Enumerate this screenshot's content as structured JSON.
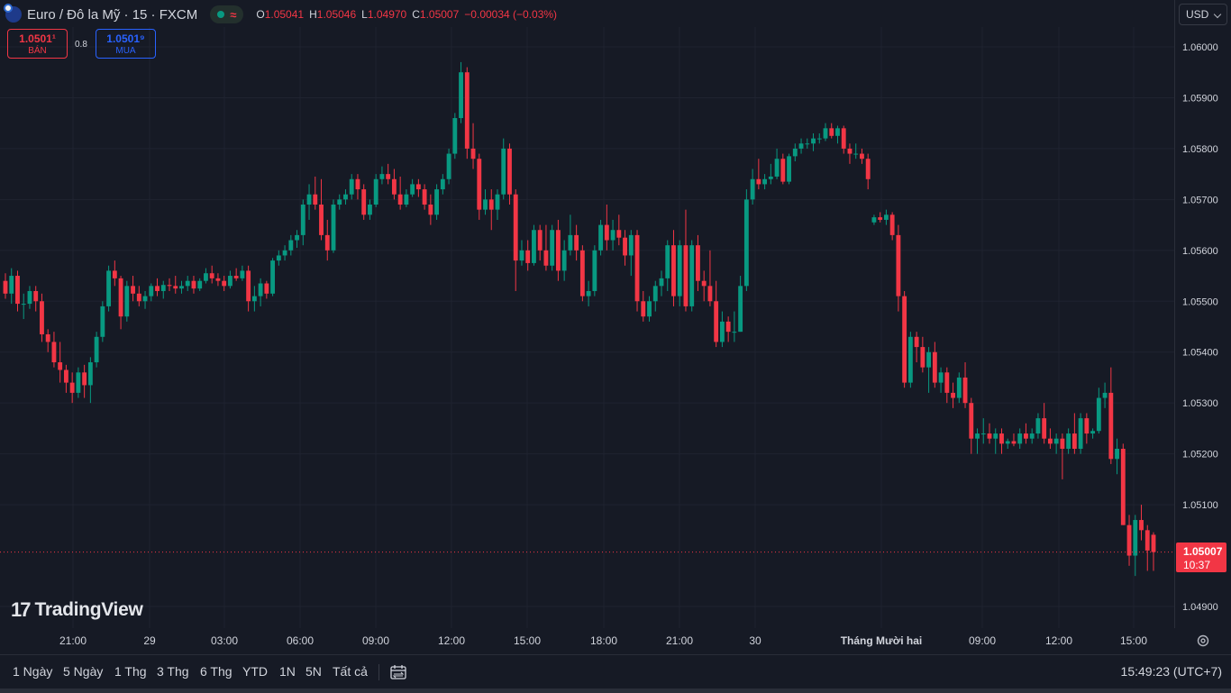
{
  "header": {
    "symbol": "Euro / Đô la Mỹ · 15 · FXCM",
    "signal": "≈",
    "ohlc": [
      {
        "k": "O",
        "v": "1.05041"
      },
      {
        "k": "H",
        "v": "1.05046"
      },
      {
        "k": "L",
        "v": "1.04970"
      },
      {
        "k": "C",
        "v": "1.05007"
      }
    ],
    "change": "−0.00034 (−0.03%)"
  },
  "trade": {
    "sell_price": "1.0501¹",
    "sell_label": "BÁN",
    "spread": "0.8",
    "buy_price": "1.0501⁹",
    "buy_label": "MUA"
  },
  "currency": "USD",
  "last_price": {
    "price": "1.05007",
    "countdown": "10:37"
  },
  "logo_text": "TradingView",
  "ranges": [
    "1 Ngày",
    "5 Ngày",
    "1 Thg",
    "3 Thg",
    "6 Thg",
    "YTD",
    "1N",
    "5N",
    "Tất cả"
  ],
  "clock": "15:49:23 (UTC+7)",
  "colors": {
    "up": "#089981",
    "down": "#f23645",
    "background": "#161a25",
    "grid": "#1f2330"
  },
  "icons": [
    "eur-usd-flag-icon",
    "market-status-icon",
    "date-range-icon",
    "settings-icon"
  ],
  "chart_data": {
    "type": "candlestick",
    "interval": "15",
    "ylim": [
      1.0486,
      1.0607
    ],
    "y_ticks": [
      "1.06000",
      "1.05900",
      "1.05800",
      "1.05700",
      "1.05600",
      "1.05500",
      "1.05400",
      "1.05300",
      "1.05200",
      "1.05100",
      "1.04900"
    ],
    "x_ticks": [
      "21:00",
      "29",
      "03:00",
      "06:00",
      "09:00",
      "12:00",
      "15:00",
      "18:00",
      "21:00",
      "30",
      "Tháng Mười hai",
      "09:00",
      "12:00",
      "15:00"
    ],
    "last": 1.05007,
    "ohlc": [
      [
        1.0554,
        1.05555,
        1.05505,
        1.05515
      ],
      [
        1.05515,
        1.05565,
        1.05495,
        1.0555
      ],
      [
        1.0555,
        1.0556,
        1.0548,
        1.05495
      ],
      [
        1.05495,
        1.05515,
        1.05465,
        1.05495
      ],
      [
        1.05495,
        1.0553,
        1.05485,
        1.0552
      ],
      [
        1.0552,
        1.0553,
        1.0548,
        1.055
      ],
      [
        1.055,
        1.05515,
        1.0542,
        1.05435
      ],
      [
        1.05435,
        1.05445,
        1.054,
        1.0542
      ],
      [
        1.0542,
        1.0544,
        1.0537,
        1.0538
      ],
      [
        1.0538,
        1.0542,
        1.0534,
        1.05365
      ],
      [
        1.05365,
        1.05375,
        1.0532,
        1.0534
      ],
      [
        1.0534,
        1.0536,
        1.053,
        1.0532
      ],
      [
        1.0532,
        1.0537,
        1.0531,
        1.0536
      ],
      [
        1.0536,
        1.05375,
        1.0531,
        1.05335
      ],
      [
        1.05335,
        1.0539,
        1.053,
        1.0538
      ],
      [
        1.0538,
        1.0544,
        1.0537,
        1.0543
      ],
      [
        1.0543,
        1.055,
        1.0542,
        1.0549
      ],
      [
        1.0549,
        1.0557,
        1.0548,
        1.0556
      ],
      [
        1.0556,
        1.0558,
        1.0553,
        1.05545
      ],
      [
        1.05545,
        1.0555,
        1.05445,
        1.0547
      ],
      [
        1.0547,
        1.0554,
        1.0546,
        1.0553
      ],
      [
        1.0553,
        1.0555,
        1.055,
        1.05515
      ],
      [
        1.05515,
        1.0553,
        1.0549,
        1.055
      ],
      [
        1.055,
        1.0552,
        1.05485,
        1.0551
      ],
      [
        1.0551,
        1.05535,
        1.055,
        1.0553
      ],
      [
        1.0553,
        1.05545,
        1.0551,
        1.0552
      ],
      [
        1.0552,
        1.0554,
        1.05505,
        1.05532
      ],
      [
        1.05532,
        1.05545,
        1.0552,
        1.0553
      ],
      [
        1.0553,
        1.0555,
        1.05515,
        1.05525
      ],
      [
        1.05525,
        1.0554,
        1.05515,
        1.0553
      ],
      [
        1.0553,
        1.0555,
        1.0552,
        1.0554
      ],
      [
        1.0554,
        1.0555,
        1.05515,
        1.05525
      ],
      [
        1.05525,
        1.05545,
        1.0552,
        1.0554
      ],
      [
        1.0554,
        1.05565,
        1.05535,
        1.05555
      ],
      [
        1.05555,
        1.0557,
        1.05535,
        1.05545
      ],
      [
        1.05545,
        1.05555,
        1.0553,
        1.0554
      ],
      [
        1.0554,
        1.0555,
        1.0552,
        1.0553
      ],
      [
        1.0553,
        1.0556,
        1.05525,
        1.0555
      ],
      [
        1.0555,
        1.05565,
        1.0554,
        1.05545
      ],
      [
        1.05545,
        1.0557,
        1.0554,
        1.0556
      ],
      [
        1.0556,
        1.0557,
        1.0548,
        1.055
      ],
      [
        1.055,
        1.0553,
        1.0548,
        1.0551
      ],
      [
        1.0551,
        1.05545,
        1.0549,
        1.05535
      ],
      [
        1.05535,
        1.0554,
        1.05505,
        1.05515
      ],
      [
        1.05515,
        1.05585,
        1.0551,
        1.0558
      ],
      [
        1.0558,
        1.056,
        1.0557,
        1.0559
      ],
      [
        1.0559,
        1.0561,
        1.0558,
        1.056
      ],
      [
        1.056,
        1.0563,
        1.0559,
        1.0562
      ],
      [
        1.0562,
        1.0564,
        1.05605,
        1.0563
      ],
      [
        1.0563,
        1.057,
        1.0561,
        1.0569
      ],
      [
        1.0569,
        1.0573,
        1.0566,
        1.0571
      ],
      [
        1.0571,
        1.05745,
        1.0568,
        1.0569
      ],
      [
        1.0569,
        1.0574,
        1.0562,
        1.0563
      ],
      [
        1.0563,
        1.0566,
        1.0558,
        1.056
      ],
      [
        1.056,
        1.057,
        1.05595,
        1.0569
      ],
      [
        1.0569,
        1.0571,
        1.0568,
        1.057
      ],
      [
        1.057,
        1.0572,
        1.0569,
        1.0571
      ],
      [
        1.0571,
        1.0575,
        1.057,
        1.0574
      ],
      [
        1.0574,
        1.0575,
        1.057,
        1.0572
      ],
      [
        1.0572,
        1.0573,
        1.0566,
        1.0567
      ],
      [
        1.0567,
        1.057,
        1.0566,
        1.0569
      ],
      [
        1.0569,
        1.0575,
        1.05685,
        1.0574
      ],
      [
        1.0574,
        1.05765,
        1.0573,
        1.0575
      ],
      [
        1.0575,
        1.0577,
        1.0573,
        1.0574
      ],
      [
        1.0574,
        1.0576,
        1.057,
        1.0571
      ],
      [
        1.0571,
        1.05745,
        1.0568,
        1.0569
      ],
      [
        1.0569,
        1.0572,
        1.05685,
        1.0571
      ],
      [
        1.0571,
        1.0574,
        1.05705,
        1.0573
      ],
      [
        1.0573,
        1.0574,
        1.05705,
        1.0572
      ],
      [
        1.0572,
        1.0573,
        1.0568,
        1.0569
      ],
      [
        1.0569,
        1.0571,
        1.0565,
        1.0567
      ],
      [
        1.0567,
        1.0573,
        1.0566,
        1.0572
      ],
      [
        1.0572,
        1.0575,
        1.0571,
        1.0574
      ],
      [
        1.0574,
        1.058,
        1.0573,
        1.0579
      ],
      [
        1.0579,
        1.0587,
        1.0578,
        1.0586
      ],
      [
        1.0586,
        1.0597,
        1.0585,
        1.0595
      ],
      [
        1.0595,
        1.0596,
        1.0578,
        1.058
      ],
      [
        1.058,
        1.0585,
        1.0576,
        1.0578
      ],
      [
        1.0578,
        1.0579,
        1.0566,
        1.0568
      ],
      [
        1.0568,
        1.0572,
        1.0567,
        1.057
      ],
      [
        1.057,
        1.0572,
        1.0564,
        1.0568
      ],
      [
        1.0568,
        1.0572,
        1.0566,
        1.0571
      ],
      [
        1.0571,
        1.0582,
        1.057,
        1.058
      ],
      [
        1.058,
        1.0581,
        1.0569,
        1.0571
      ],
      [
        1.0571,
        1.0572,
        1.0552,
        1.0558
      ],
      [
        1.0558,
        1.0562,
        1.0557,
        1.056
      ],
      [
        1.056,
        1.0562,
        1.0556,
        1.05575
      ],
      [
        1.05575,
        1.0565,
        1.0557,
        1.0564
      ],
      [
        1.0564,
        1.0565,
        1.0558,
        1.056
      ],
      [
        1.056,
        1.0565,
        1.0556,
        1.0557
      ],
      [
        1.0557,
        1.0565,
        1.0556,
        1.0564
      ],
      [
        1.0564,
        1.0566,
        1.0554,
        1.0556
      ],
      [
        1.0556,
        1.0562,
        1.0554,
        1.056
      ],
      [
        1.056,
        1.0567,
        1.0559,
        1.0563
      ],
      [
        1.0563,
        1.0565,
        1.0558,
        1.056
      ],
      [
        1.056,
        1.0561,
        1.055,
        1.0551
      ],
      [
        1.0551,
        1.0554,
        1.0549,
        1.0552
      ],
      [
        1.0552,
        1.0561,
        1.0551,
        1.056
      ],
      [
        1.056,
        1.0566,
        1.0559,
        1.0565
      ],
      [
        1.0565,
        1.0569,
        1.056,
        1.0562
      ],
      [
        1.0562,
        1.0566,
        1.056,
        1.0564
      ],
      [
        1.0564,
        1.0567,
        1.0561,
        1.05625
      ],
      [
        1.05625,
        1.0564,
        1.0557,
        1.0559
      ],
      [
        1.0559,
        1.0564,
        1.0555,
        1.0563
      ],
      [
        1.0563,
        1.0564,
        1.0548,
        1.055
      ],
      [
        1.055,
        1.0552,
        1.0546,
        1.0547
      ],
      [
        1.0547,
        1.0551,
        1.0546,
        1.055
      ],
      [
        1.055,
        1.0554,
        1.0548,
        1.0553
      ],
      [
        1.0553,
        1.0556,
        1.0551,
        1.05545
      ],
      [
        1.05545,
        1.0562,
        1.0552,
        1.0561
      ],
      [
        1.0561,
        1.0564,
        1.0549,
        1.0551
      ],
      [
        1.0551,
        1.0562,
        1.0549,
        1.0561
      ],
      [
        1.0561,
        1.0568,
        1.0548,
        1.0549
      ],
      [
        1.0549,
        1.0562,
        1.0548,
        1.0561
      ],
      [
        1.0561,
        1.0563,
        1.0552,
        1.0554
      ],
      [
        1.0554,
        1.0556,
        1.055,
        1.0553
      ],
      [
        1.0553,
        1.056,
        1.0549,
        1.055
      ],
      [
        1.055,
        1.0554,
        1.0541,
        1.0542
      ],
      [
        1.0542,
        1.0548,
        1.0541,
        1.0546
      ],
      [
        1.0546,
        1.0547,
        1.0542,
        1.0544
      ],
      [
        1.0544,
        1.0548,
        1.0542,
        1.0544
      ],
      [
        1.0544,
        1.0555,
        1.0544,
        1.0553
      ],
      [
        1.0553,
        1.0572,
        1.0552,
        1.057
      ],
      [
        1.057,
        1.0576,
        1.0569,
        1.0574
      ],
      [
        1.0574,
        1.0578,
        1.0572,
        1.0573
      ],
      [
        1.0573,
        1.0575,
        1.0572,
        1.0574
      ],
      [
        1.0574,
        1.0577,
        1.0573,
        1.05745
      ],
      [
        1.05745,
        1.058,
        1.0574,
        1.0578
      ],
      [
        1.0578,
        1.0579,
        1.0573,
        1.05735
      ],
      [
        1.05735,
        1.0579,
        1.0573,
        1.05785
      ],
      [
        1.05785,
        1.0581,
        1.05775,
        1.058
      ],
      [
        1.058,
        1.0582,
        1.0579,
        1.0581
      ],
      [
        1.0581,
        1.0582,
        1.058,
        1.0581
      ],
      [
        1.0581,
        1.0583,
        1.05795,
        1.0582
      ],
      [
        1.0582,
        1.0583,
        1.0581,
        1.0582
      ],
      [
        1.0582,
        1.0585,
        1.05815,
        1.0584
      ],
      [
        1.0584,
        1.0585,
        1.0582,
        1.05825
      ],
      [
        1.05825,
        1.05845,
        1.0581,
        1.0584
      ],
      [
        1.0584,
        1.05845,
        1.0579,
        1.058
      ],
      [
        1.058,
        1.0581,
        1.0577,
        1.0579
      ],
      [
        1.0579,
        1.0581,
        1.0578,
        1.0579
      ],
      [
        1.0579,
        1.058,
        1.0577,
        1.0578
      ],
      [
        1.0578,
        1.0579,
        1.0572,
        1.0574
      ],
      [
        1.05655,
        1.0567,
        1.0565,
        1.05665
      ],
      [
        1.05665,
        1.05675,
        1.05655,
        1.0566
      ],
      [
        1.0566,
        1.0568,
        1.0565,
        1.0567
      ],
      [
        1.0567,
        1.05675,
        1.0562,
        1.0563
      ],
      [
        1.0563,
        1.0565,
        1.0548,
        1.0551
      ],
      [
        1.0551,
        1.0552,
        1.0533,
        1.0534
      ],
      [
        1.0534,
        1.0544,
        1.0533,
        1.0543
      ],
      [
        1.0543,
        1.0544,
        1.0538,
        1.0541
      ],
      [
        1.0541,
        1.0543,
        1.0536,
        1.0537
      ],
      [
        1.0537,
        1.0541,
        1.0532,
        1.054
      ],
      [
        1.054,
        1.0542,
        1.0533,
        1.0534
      ],
      [
        1.0534,
        1.0537,
        1.0532,
        1.0536
      ],
      [
        1.0536,
        1.0537,
        1.053,
        1.0532
      ],
      [
        1.0532,
        1.0534,
        1.0529,
        1.0531
      ],
      [
        1.0531,
        1.0536,
        1.053,
        1.0535
      ],
      [
        1.0535,
        1.0538,
        1.0529,
        1.053
      ],
      [
        1.053,
        1.0531,
        1.052,
        1.0523
      ],
      [
        1.0523,
        1.0525,
        1.052,
        1.0524
      ],
      [
        1.0524,
        1.0527,
        1.0522,
        1.0524
      ],
      [
        1.0524,
        1.0526,
        1.0522,
        1.0523
      ],
      [
        1.0523,
        1.0525,
        1.052,
        1.0524
      ],
      [
        1.0524,
        1.0525,
        1.052,
        1.0522
      ],
      [
        1.0522,
        1.0523,
        1.0521,
        1.05225
      ],
      [
        1.05225,
        1.0524,
        1.05215,
        1.0522
      ],
      [
        1.0522,
        1.0525,
        1.0521,
        1.0524
      ],
      [
        1.0524,
        1.0526,
        1.0522,
        1.0523
      ],
      [
        1.0523,
        1.0525,
        1.0522,
        1.0524
      ],
      [
        1.0524,
        1.0528,
        1.0523,
        1.0527
      ],
      [
        1.0527,
        1.053,
        1.0522,
        1.0523
      ],
      [
        1.0523,
        1.0525,
        1.0521,
        1.0522
      ],
      [
        1.0522,
        1.0524,
        1.052,
        1.0523
      ],
      [
        1.0523,
        1.0524,
        1.0515,
        1.0521
      ],
      [
        1.0521,
        1.0525,
        1.052,
        1.0524
      ],
      [
        1.0524,
        1.0528,
        1.052,
        1.0521
      ],
      [
        1.0521,
        1.0528,
        1.052,
        1.0527
      ],
      [
        1.0527,
        1.0528,
        1.0522,
        1.0524
      ],
      [
        1.0524,
        1.0525,
        1.0523,
        1.05245
      ],
      [
        1.05245,
        1.0533,
        1.0524,
        1.0531
      ],
      [
        1.0531,
        1.0534,
        1.0529,
        1.0532
      ],
      [
        1.0532,
        1.0537,
        1.0518,
        1.0519
      ],
      [
        1.0519,
        1.0523,
        1.0516,
        1.0521
      ],
      [
        1.0521,
        1.0522,
        1.0506,
        1.0506
      ],
      [
        1.0506,
        1.0508,
        1.0498,
        1.05
      ],
      [
        1.05,
        1.0508,
        1.0496,
        1.0507
      ],
      [
        1.0507,
        1.051,
        1.0503,
        1.0505
      ],
      [
        1.0505,
        1.0506,
        1.0497,
        1.0501
      ],
      [
        1.05041,
        1.05046,
        1.0497,
        1.05007
      ]
    ]
  }
}
